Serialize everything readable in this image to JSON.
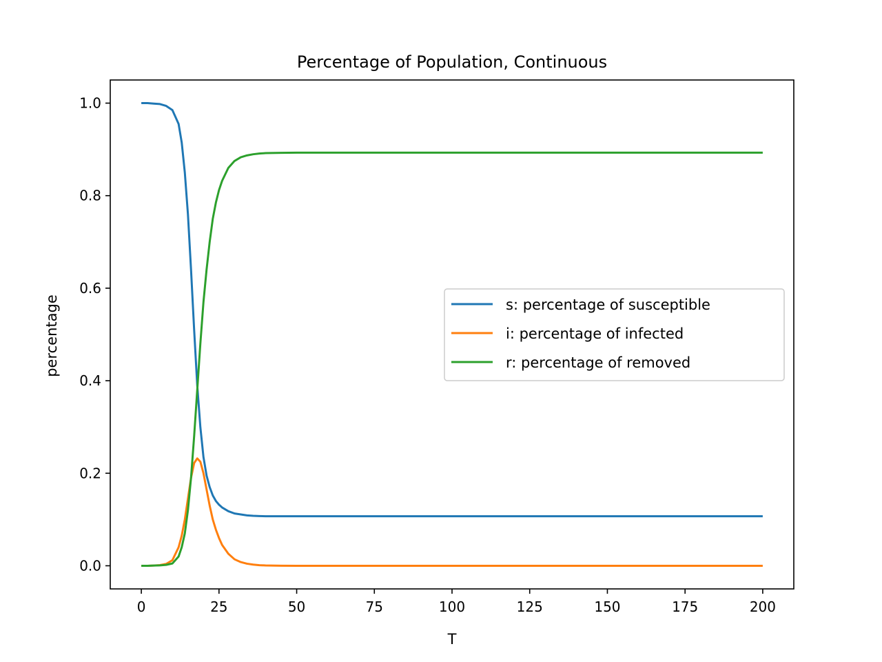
{
  "chart_data": {
    "type": "line",
    "title": "Percentage of Population, Continuous",
    "xlabel": "T",
    "ylabel": "percentage",
    "xlim": [
      -10,
      210
    ],
    "ylim": [
      -0.05,
      1.05
    ],
    "xticks": [
      0,
      25,
      50,
      75,
      100,
      125,
      150,
      175,
      200
    ],
    "yticks": [
      0.0,
      0.2,
      0.4,
      0.6,
      0.8,
      1.0
    ],
    "xtick_labels": [
      "0",
      "25",
      "50",
      "75",
      "100",
      "125",
      "150",
      "175",
      "200"
    ],
    "ytick_labels": [
      "0.0",
      "0.2",
      "0.4",
      "0.6",
      "0.8",
      "1.0"
    ],
    "grid": false,
    "legend_position": "center-right",
    "x": [
      0,
      2,
      4,
      6,
      8,
      10,
      12,
      13,
      14,
      15,
      16,
      17,
      18,
      19,
      20,
      21,
      22,
      23,
      24,
      25,
      26,
      28,
      30,
      32,
      34,
      36,
      38,
      40,
      45,
      50,
      60,
      80,
      100,
      150,
      200
    ],
    "series": [
      {
        "name": "s: percentage of susceptible",
        "color": "#1f77b4",
        "values": [
          1.0,
          1.0,
          0.999,
          0.998,
          0.994,
          0.985,
          0.955,
          0.915,
          0.85,
          0.76,
          0.64,
          0.51,
          0.39,
          0.3,
          0.235,
          0.195,
          0.17,
          0.152,
          0.14,
          0.132,
          0.126,
          0.118,
          0.113,
          0.111,
          0.109,
          0.108,
          0.1075,
          0.107,
          0.107,
          0.107,
          0.107,
          0.107,
          0.107,
          0.107,
          0.107
        ]
      },
      {
        "name": "i: percentage of infected",
        "color": "#ff7f0e",
        "values": [
          0.0,
          0.0,
          0.0005,
          0.0015,
          0.004,
          0.012,
          0.04,
          0.065,
          0.1,
          0.145,
          0.19,
          0.222,
          0.232,
          0.225,
          0.2,
          0.165,
          0.13,
          0.1,
          0.078,
          0.06,
          0.045,
          0.026,
          0.014,
          0.008,
          0.0045,
          0.0025,
          0.0013,
          0.0007,
          0.0002,
          0.0,
          0.0,
          0.0,
          0.0,
          0.0,
          0.0
        ]
      },
      {
        "name": "r: percentage of removed",
        "color": "#2ca02c",
        "values": [
          0.0,
          0.0,
          0.0005,
          0.0008,
          0.002,
          0.005,
          0.02,
          0.04,
          0.07,
          0.12,
          0.19,
          0.28,
          0.38,
          0.48,
          0.57,
          0.64,
          0.7,
          0.75,
          0.785,
          0.812,
          0.832,
          0.86,
          0.875,
          0.883,
          0.887,
          0.8895,
          0.891,
          0.892,
          0.8925,
          0.893,
          0.893,
          0.893,
          0.893,
          0.893,
          0.893
        ]
      }
    ]
  }
}
